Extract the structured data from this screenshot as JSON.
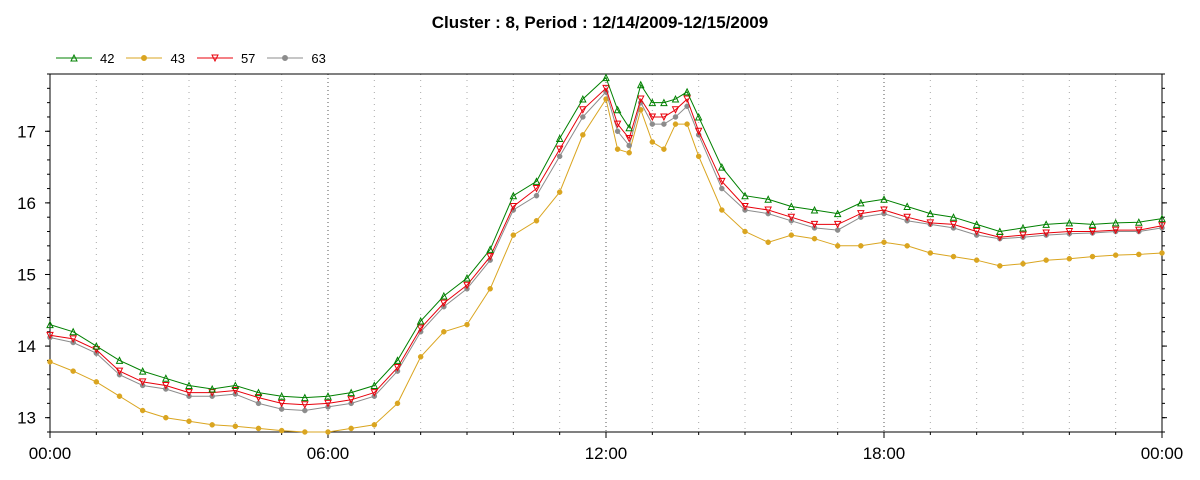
{
  "chart_data": {
    "type": "line",
    "title": "Cluster : 8, Period : 12/14/2009-12/15/2009",
    "xlabel": "",
    "ylabel": "",
    "xlim": [
      0,
      24
    ],
    "ylim": [
      12.8,
      17.8
    ],
    "x_ticks": [
      0,
      6,
      12,
      18,
      24
    ],
    "x_tick_labels": [
      "00:00",
      "06:00",
      "12:00",
      "18:00",
      "00:00"
    ],
    "y_ticks": [
      13,
      14,
      15,
      16,
      17
    ],
    "y_tick_labels": [
      "13",
      "14",
      "15",
      "16",
      "17"
    ],
    "grid": "dotted vertical",
    "legend_position": "top-left",
    "series": [
      {
        "name": "42",
        "color": "#008000",
        "marker": "triangle-up",
        "x": [
          0,
          0.5,
          1,
          1.5,
          2,
          2.5,
          3,
          3.5,
          4,
          4.5,
          5,
          5.5,
          6,
          6.5,
          7,
          7.5,
          8,
          8.5,
          9,
          9.5,
          10,
          10.5,
          11,
          11.5,
          12,
          12.25,
          12.5,
          12.75,
          13,
          13.25,
          13.5,
          13.75,
          14,
          14.5,
          15,
          15.5,
          16,
          16.5,
          17,
          17.5,
          18,
          18.5,
          19,
          19.5,
          20,
          20.5,
          21,
          21.5,
          22,
          22.5,
          23,
          23.5,
          24
        ],
        "y": [
          14.3,
          14.2,
          14.0,
          13.8,
          13.65,
          13.55,
          13.45,
          13.4,
          13.45,
          13.35,
          13.3,
          13.28,
          13.3,
          13.35,
          13.45,
          13.8,
          14.35,
          14.7,
          14.95,
          15.35,
          16.1,
          16.3,
          16.9,
          17.45,
          17.75,
          17.3,
          17.05,
          17.65,
          17.4,
          17.4,
          17.45,
          17.55,
          17.2,
          16.5,
          16.1,
          16.05,
          15.95,
          15.9,
          15.85,
          16.0,
          16.05,
          15.95,
          15.85,
          15.8,
          15.7,
          15.6,
          15.65,
          15.7,
          15.72,
          15.7,
          15.72,
          15.73,
          15.78
        ]
      },
      {
        "name": "43",
        "color": "#DAA520",
        "marker": "circle",
        "x": [
          0,
          0.5,
          1,
          1.5,
          2,
          2.5,
          3,
          3.5,
          4,
          4.5,
          5,
          5.5,
          6,
          6.5,
          7,
          7.5,
          8,
          8.5,
          9,
          9.5,
          10,
          10.5,
          11,
          11.5,
          12,
          12.25,
          12.5,
          12.75,
          13,
          13.25,
          13.5,
          13.75,
          14,
          14.5,
          15,
          15.5,
          16,
          16.5,
          17,
          17.5,
          18,
          18.5,
          19,
          19.5,
          20,
          20.5,
          21,
          21.5,
          22,
          22.5,
          23,
          23.5,
          24
        ],
        "y": [
          13.78,
          13.65,
          13.5,
          13.3,
          13.1,
          13.0,
          12.95,
          12.9,
          12.88,
          12.85,
          12.82,
          12.8,
          12.8,
          12.85,
          12.9,
          13.2,
          13.85,
          14.2,
          14.3,
          14.8,
          15.55,
          15.75,
          16.15,
          16.95,
          17.45,
          16.75,
          16.7,
          17.3,
          16.85,
          16.75,
          17.1,
          17.1,
          16.65,
          15.9,
          15.6,
          15.45,
          15.55,
          15.5,
          15.4,
          15.4,
          15.45,
          15.4,
          15.3,
          15.25,
          15.2,
          15.12,
          15.15,
          15.2,
          15.22,
          15.25,
          15.27,
          15.28,
          15.3
        ]
      },
      {
        "name": "57",
        "color": "#E8000B",
        "marker": "triangle-down",
        "x": [
          0,
          0.5,
          1,
          1.5,
          2,
          2.5,
          3,
          3.5,
          4,
          4.5,
          5,
          5.5,
          6,
          6.5,
          7,
          7.5,
          8,
          8.5,
          9,
          9.5,
          10,
          10.5,
          11,
          11.5,
          12,
          12.25,
          12.5,
          12.75,
          13,
          13.25,
          13.5,
          13.75,
          14,
          14.5,
          15,
          15.5,
          16,
          16.5,
          17,
          17.5,
          18,
          18.5,
          19,
          19.5,
          20,
          20.5,
          21,
          21.5,
          22,
          22.5,
          23,
          23.5,
          24
        ],
        "y": [
          14.15,
          14.1,
          13.95,
          13.65,
          13.5,
          13.45,
          13.35,
          13.35,
          13.38,
          13.28,
          13.2,
          13.18,
          13.2,
          13.25,
          13.35,
          13.7,
          14.25,
          14.6,
          14.85,
          15.25,
          15.95,
          16.2,
          16.75,
          17.3,
          17.6,
          17.1,
          16.9,
          17.45,
          17.2,
          17.2,
          17.3,
          17.45,
          17.0,
          16.3,
          15.95,
          15.9,
          15.8,
          15.7,
          15.7,
          15.85,
          15.9,
          15.8,
          15.72,
          15.7,
          15.6,
          15.52,
          15.55,
          15.58,
          15.6,
          15.6,
          15.62,
          15.62,
          15.68
        ]
      },
      {
        "name": "63",
        "color": "#8C8C8C",
        "marker": "circle",
        "x": [
          0,
          0.5,
          1,
          1.5,
          2,
          2.5,
          3,
          3.5,
          4,
          4.5,
          5,
          5.5,
          6,
          6.5,
          7,
          7.5,
          8,
          8.5,
          9,
          9.5,
          10,
          10.5,
          11,
          11.5,
          12,
          12.25,
          12.5,
          12.75,
          13,
          13.25,
          13.5,
          13.75,
          14,
          14.5,
          15,
          15.5,
          16,
          16.5,
          17,
          17.5,
          18,
          18.5,
          19,
          19.5,
          20,
          20.5,
          21,
          21.5,
          22,
          22.5,
          23,
          23.5,
          24
        ],
        "y": [
          14.12,
          14.05,
          13.9,
          13.6,
          13.45,
          13.4,
          13.3,
          13.3,
          13.33,
          13.2,
          13.12,
          13.1,
          13.15,
          13.2,
          13.3,
          13.65,
          14.2,
          14.55,
          14.8,
          15.2,
          15.9,
          16.1,
          16.65,
          17.2,
          17.55,
          17.0,
          16.8,
          17.4,
          17.1,
          17.1,
          17.2,
          17.35,
          16.95,
          16.2,
          15.9,
          15.85,
          15.75,
          15.65,
          15.62,
          15.8,
          15.85,
          15.75,
          15.7,
          15.65,
          15.55,
          15.5,
          15.52,
          15.55,
          15.57,
          15.58,
          15.6,
          15.6,
          15.65
        ]
      }
    ]
  }
}
